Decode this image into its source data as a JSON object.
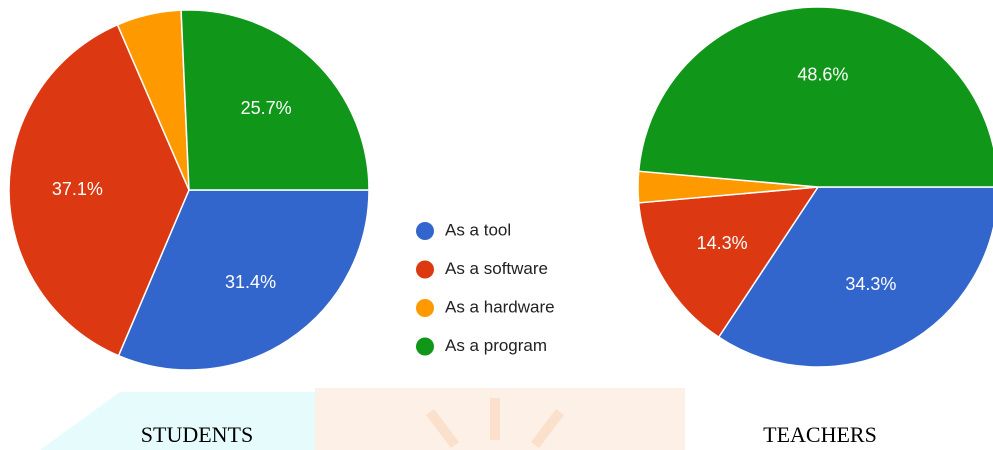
{
  "chart_data": {
    "type": "pie",
    "categories": [
      "As a tool",
      "As a software",
      "As a hardware",
      "As a program"
    ],
    "colors": [
      "#3366cc",
      "#dc3912",
      "#ff9900",
      "#109618"
    ],
    "series": [
      {
        "name": "STUDENTS",
        "values": [
          31.4,
          37.1,
          5.8,
          25.7
        ],
        "value_labels": [
          "31.4%",
          "37.1%",
          null,
          "25.7%"
        ]
      },
      {
        "name": "TEACHERS",
        "values": [
          34.3,
          14.3,
          2.8,
          48.6
        ],
        "value_labels": [
          "34.3%",
          "14.3%",
          null,
          "48.6%"
        ]
      }
    ]
  }
}
